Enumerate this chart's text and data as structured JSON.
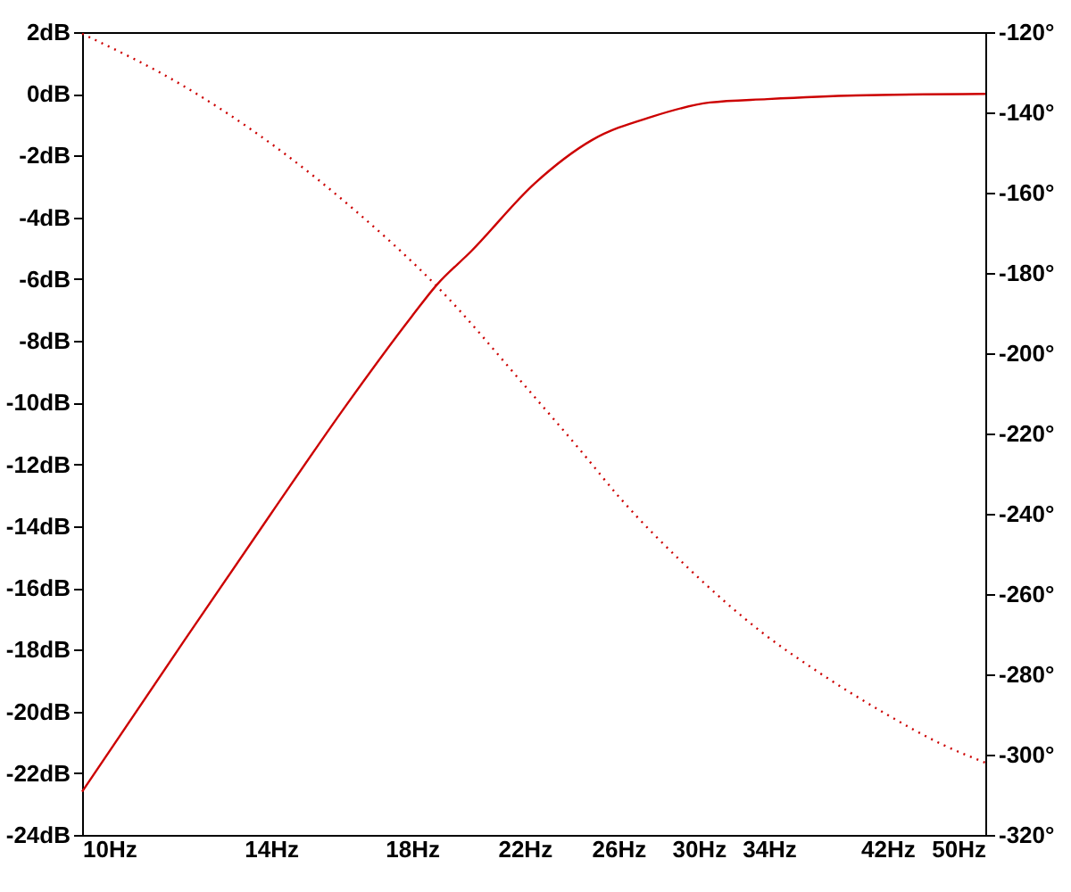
{
  "chart_data": {
    "type": "line",
    "log": "x",
    "grid": false,
    "marker": "none",
    "xlim": [
      10,
      50
    ],
    "xticks": [
      {
        "value": 10,
        "label": "10Hz"
      },
      {
        "value": 14,
        "label": "14Hz"
      },
      {
        "value": 18,
        "label": "18Hz"
      },
      {
        "value": 22,
        "label": "22Hz"
      },
      {
        "value": 26,
        "label": "26Hz"
      },
      {
        "value": 30,
        "label": "30Hz"
      },
      {
        "value": 34,
        "label": "34Hz"
      },
      {
        "value": 42,
        "label": "42Hz"
      },
      {
        "value": 50,
        "label": "50Hz"
      }
    ],
    "ylim": [
      -24,
      2
    ],
    "yticks": [
      {
        "value": 2,
        "label": "2dB"
      },
      {
        "value": 0,
        "label": "0dB"
      },
      {
        "value": -2,
        "label": "-2dB"
      },
      {
        "value": -4,
        "label": "-4dB"
      },
      {
        "value": -6,
        "label": "-6dB"
      },
      {
        "value": -8,
        "label": "-8dB"
      },
      {
        "value": -10,
        "label": "-10dB"
      },
      {
        "value": -12,
        "label": "-12dB"
      },
      {
        "value": -14,
        "label": "-14dB"
      },
      {
        "value": -16,
        "label": "-16dB"
      },
      {
        "value": -18,
        "label": "-18dB"
      },
      {
        "value": -20,
        "label": "-20dB"
      },
      {
        "value": -22,
        "label": "-22dB"
      },
      {
        "value": -24,
        "label": "-24dB"
      }
    ],
    "y2lim": [
      -320,
      -120
    ],
    "y2ticks": [
      {
        "value": -120,
        "label": "-120°"
      },
      {
        "value": -140,
        "label": "-140°"
      },
      {
        "value": -160,
        "label": "-160°"
      },
      {
        "value": -180,
        "label": "-180°"
      },
      {
        "value": -200,
        "label": "-200°"
      },
      {
        "value": -220,
        "label": "-220°"
      },
      {
        "value": -240,
        "label": "-240°"
      },
      {
        "value": -260,
        "label": "-260°"
      },
      {
        "value": -280,
        "label": "-280°"
      },
      {
        "value": -300,
        "label": "-300°"
      },
      {
        "value": -320,
        "label": "-320°"
      }
    ],
    "series": [
      {
        "color": "#cc0000",
        "line_style": "solid",
        "x": [
          10,
          12,
          14,
          16,
          18,
          18.8,
          20,
          22.4,
          24.8,
          27.6,
          30.6,
          33.9,
          39.7,
          50
        ],
        "values": [
          -22.6,
          -17.7,
          -13.6,
          -10.1,
          -7.2,
          -6.2,
          -5.1,
          -2.9,
          -1.5,
          -0.74,
          -0.28,
          -0.17,
          -0.05,
          0
        ]
      },
      {
        "color": "#cc0000",
        "line_style": "dotted",
        "axis": "y2",
        "x": [
          10,
          11.95,
          14.1,
          16.3,
          18.8,
          22.2,
          24.2,
          26.1,
          29.4,
          33.6,
          37.2,
          41.8,
          46.4,
          50
        ],
        "values": [
          -120.4,
          -133.2,
          -148.5,
          -164.7,
          -183.2,
          -209.5,
          -223.5,
          -236.2,
          -253.3,
          -269.6,
          -279.6,
          -289.7,
          -297.6,
          -302
        ]
      }
    ]
  }
}
